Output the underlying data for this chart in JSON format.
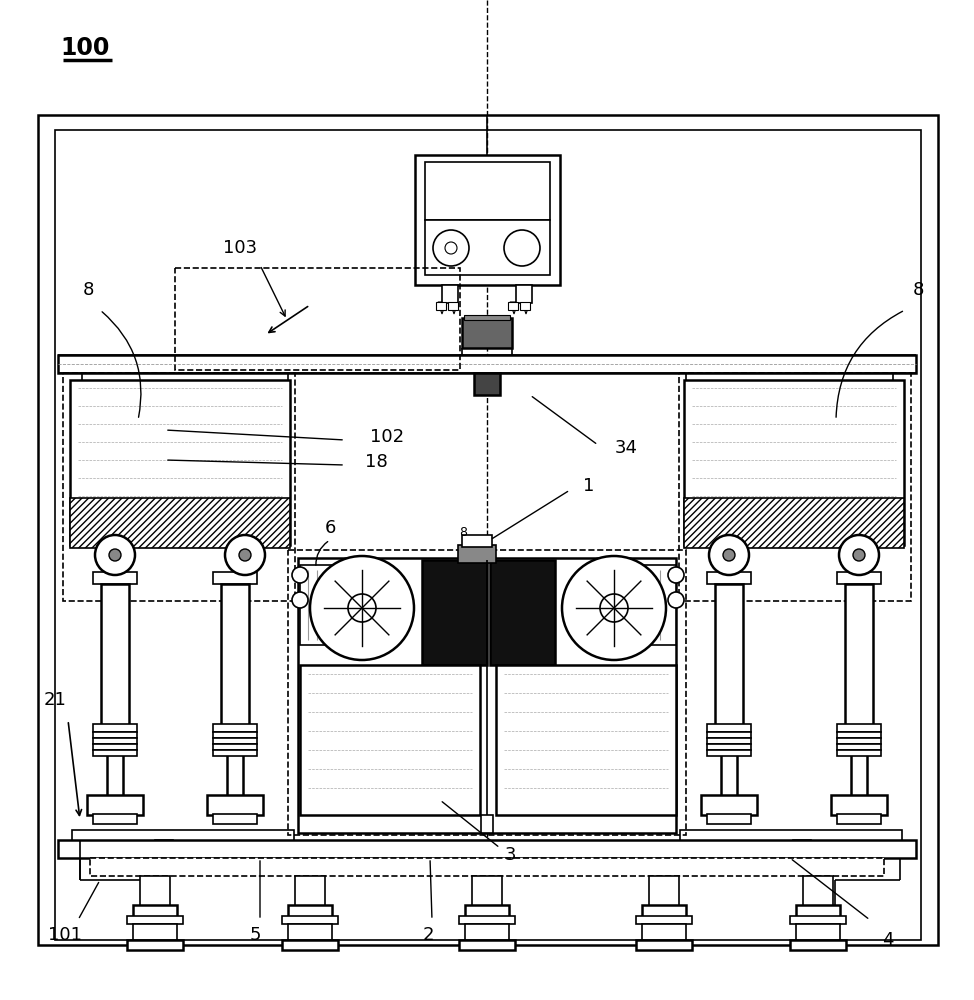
{
  "bg_color": "#ffffff",
  "lc": "#000000",
  "label_100": "100",
  "label_103": "103",
  "label_8l": "8",
  "label_8r": "8",
  "label_102": "102",
  "label_18": "18",
  "label_34": "34",
  "label_1": "1",
  "label_6": "6",
  "label_21": "21",
  "label_101": "101",
  "label_3": "3",
  "label_5": "5",
  "label_2": "2",
  "label_4": "4"
}
